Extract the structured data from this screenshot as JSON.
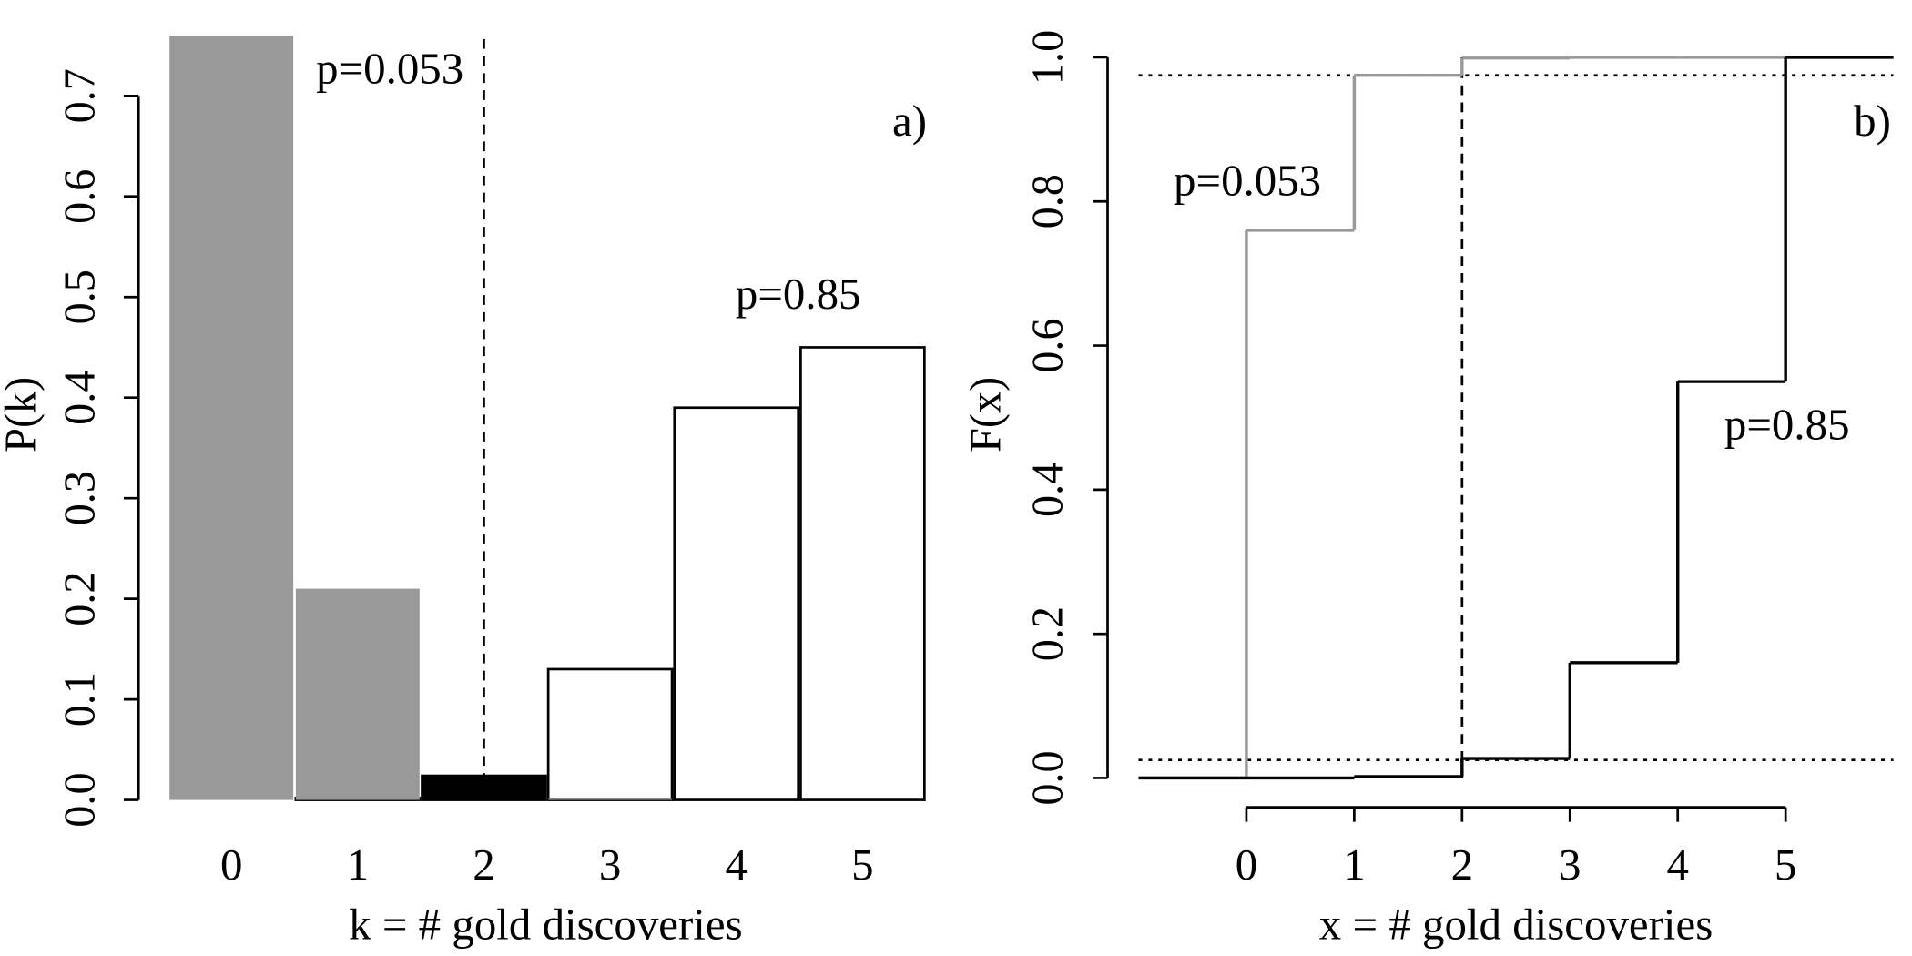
{
  "chart_data": [
    {
      "type": "bar",
      "panel_label": "a)",
      "xlabel": "k = # gold discoveries",
      "ylabel": "P(k)",
      "categories": [
        "0",
        "1",
        "2",
        "3",
        "4",
        "5"
      ],
      "series": [
        {
          "name": "p=0.053",
          "color": "#999999",
          "colors": [
            "#999999",
            "#999999",
            "#000000",
            "#999999",
            "#999999",
            "#999999"
          ],
          "values": [
            0.76,
            0.21,
            0.024,
            0.001,
            0,
            0
          ]
        },
        {
          "name": "p=0.85",
          "color": "#ffffff",
          "edge": "#000000",
          "values": [
            0,
            0.002,
            0.024,
            0.13,
            0.39,
            0.45
          ]
        }
      ],
      "ylim": [
        0,
        0.765
      ],
      "yticks": [
        {
          "value": 0,
          "label": "0.0"
        },
        0.1,
        0.2,
        0.3,
        0.4,
        0.5,
        0.6,
        0.7
      ],
      "vline": 2
    },
    {
      "type": "step",
      "panel_label": "b)",
      "xlabel": "x = # gold discoveries",
      "ylabel": "F(x)",
      "x": [
        0,
        1,
        2,
        3,
        4,
        5
      ],
      "series": [
        {
          "name": "p=0.053",
          "color": "#999999",
          "values": [
            0.76,
            0.975,
            0.999,
            1,
            1,
            1
          ]
        },
        {
          "name": "p=0.85",
          "color": "#000000",
          "values": [
            0,
            0.002,
            0.027,
            0.16,
            0.55,
            1
          ]
        }
      ],
      "xlim": [
        -1,
        6
      ],
      "xticks": [
        0,
        1,
        2,
        3,
        4,
        5
      ],
      "ylim": [
        0,
        1
      ],
      "yticks": [
        {
          "value": 0,
          "label": "0.0"
        },
        0.2,
        0.4,
        0.6,
        0.8,
        {
          "value": 1,
          "label": "1.0"
        }
      ],
      "hlines": [
        0.025,
        0.975
      ],
      "vline": 2
    }
  ]
}
